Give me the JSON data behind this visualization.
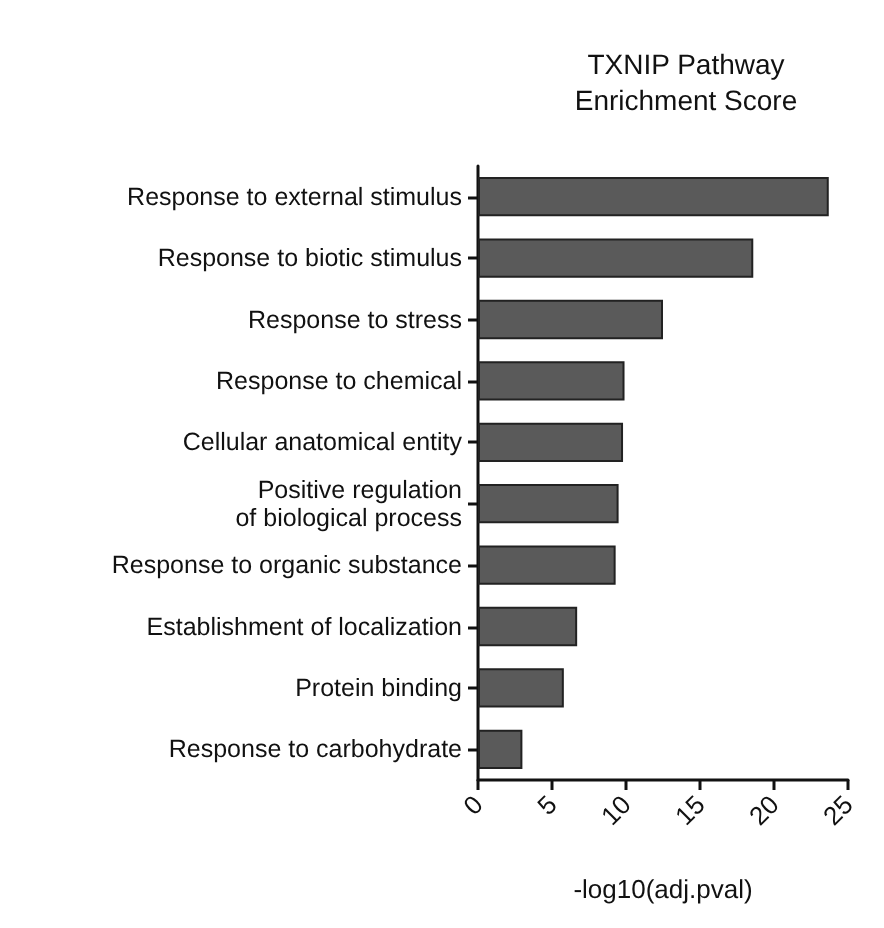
{
  "chart_data": {
    "type": "bar",
    "orientation": "horizontal",
    "title": "TXNIP Pathway\nEnrichment Score",
    "xlabel": "-log10(adj.pval)",
    "categories": [
      "Response to external stimulus",
      "Response to biotic stimulus",
      "Response to stress",
      "Response to chemical",
      "Cellular anatomical entity",
      "Positive regulation\nof biological process",
      "Response to organic substance",
      "Establishment of localization",
      "Protein binding",
      "Response to carbohydrate"
    ],
    "values": [
      23.7,
      18.6,
      12.5,
      9.9,
      9.8,
      9.5,
      9.3,
      6.7,
      5.8,
      3.0
    ],
    "color": "#5a5a5a",
    "xlim": [
      0,
      25
    ],
    "xticks": [
      0,
      5,
      10,
      15,
      20,
      25
    ],
    "grid": false
  }
}
